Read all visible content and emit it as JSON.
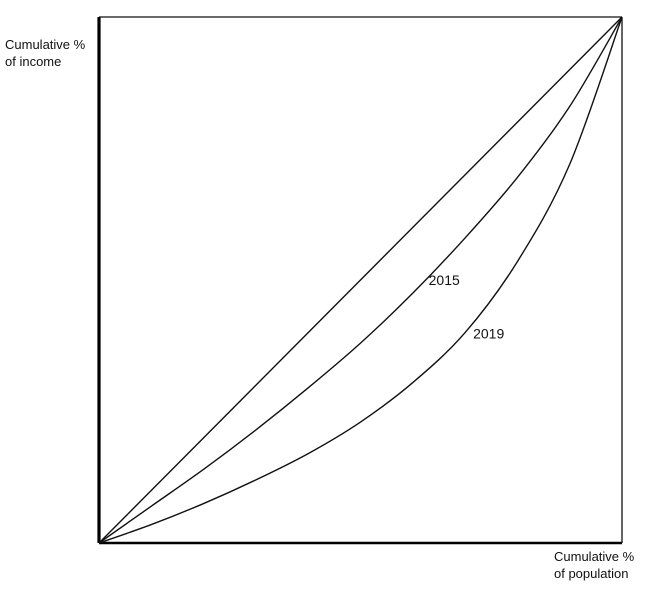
{
  "chart_data": {
    "type": "line",
    "title": "",
    "ylabel": "Cumulative %\nof income",
    "xlabel": "Cumulative %\nof population",
    "xlim": [
      0,
      100
    ],
    "ylim": [
      0,
      100
    ],
    "grid": false,
    "legend": "none",
    "series": [
      {
        "name": "",
        "role": "line-of-equality",
        "x": [
          0,
          100
        ],
        "y": [
          0,
          100
        ]
      },
      {
        "name": "2015",
        "x": [
          0,
          10,
          20,
          30,
          40,
          50,
          60,
          70,
          80,
          90,
          100
        ],
        "y": [
          0,
          7,
          14,
          21.5,
          29.5,
          38,
          47.5,
          58,
          69.5,
          83,
          100
        ]
      },
      {
        "name": "2019",
        "x": [
          0,
          10,
          20,
          30,
          40,
          50,
          60,
          70,
          80,
          90,
          100
        ],
        "y": [
          0,
          3.5,
          7.5,
          12,
          17,
          23,
          30.5,
          40,
          53.5,
          72,
          100
        ]
      }
    ],
    "colors": {
      "line": "#111111",
      "axis": "#000000",
      "frame": "#111111"
    }
  }
}
